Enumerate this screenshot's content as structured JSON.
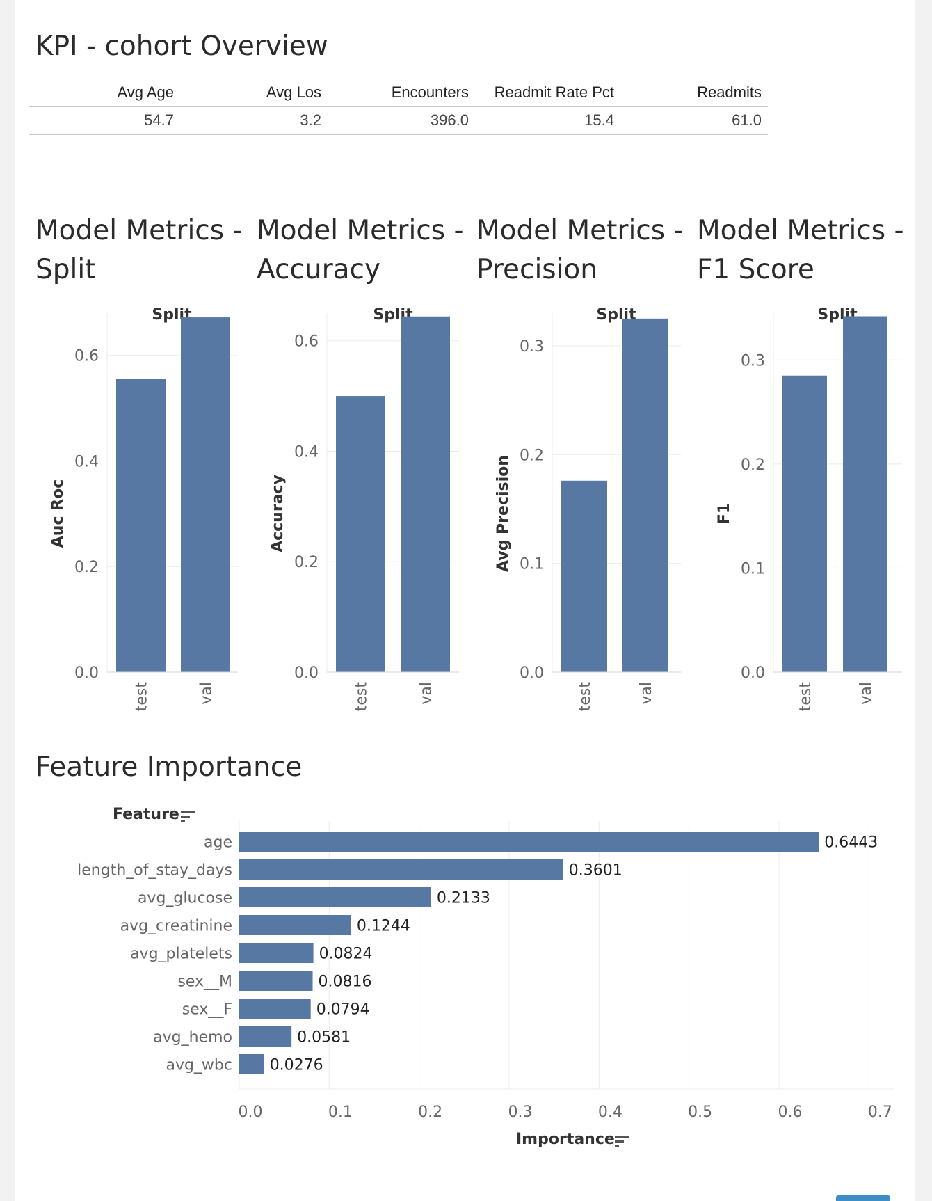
{
  "kpi": {
    "title": "KPI - cohort Overview",
    "columns": [
      "Avg Age",
      "Avg Los",
      "Encounters",
      "Readmit Rate Pct",
      "Readmits"
    ],
    "values": [
      "54.7",
      "3.2",
      "396.0",
      "15.4",
      "61.0"
    ]
  },
  "model_metrics": [
    {
      "title": "Model Metrics - Split",
      "header": "Split",
      "ylabel": "Auc Roc"
    },
    {
      "title": "Model Metrics - Accuracy",
      "header": "Split",
      "ylabel": "Accuracy"
    },
    {
      "title": "Model Metrics - Precision",
      "header": "Split",
      "ylabel": "Avg Precision"
    },
    {
      "title": "Model Metrics - F1 Score",
      "header": "Split",
      "ylabel": "F1"
    }
  ],
  "feature_importance": {
    "title": "Feature Importance",
    "feature_header": "Feature",
    "importance_header": "Importance"
  },
  "colors": {
    "bar": "#5878a4",
    "grid": "#ececec",
    "axis": "#d6d6d6",
    "tick": "#666666"
  },
  "chart_data": [
    {
      "type": "bar",
      "title": "Model Metrics - Split",
      "xlabel": "Split",
      "ylabel": "Auc Roc",
      "categories": [
        "test",
        "val"
      ],
      "values": [
        0.556,
        0.672
      ],
      "ylim": [
        0,
        0.68
      ],
      "yticks": [
        0.0,
        0.2,
        0.4,
        0.6
      ]
    },
    {
      "type": "bar",
      "title": "Model Metrics - Accuracy",
      "xlabel": "Split",
      "ylabel": "Accuracy",
      "categories": [
        "test",
        "val"
      ],
      "values": [
        0.5,
        0.644
      ],
      "ylim": [
        0,
        0.65
      ],
      "yticks": [
        0.0,
        0.2,
        0.4,
        0.6
      ]
    },
    {
      "type": "bar",
      "title": "Model Metrics - Precision",
      "xlabel": "Split",
      "ylabel": "Avg Precision",
      "categories": [
        "test",
        "val"
      ],
      "values": [
        0.176,
        0.325
      ],
      "ylim": [
        0,
        0.33
      ],
      "yticks": [
        0.0,
        0.1,
        0.2,
        0.3
      ]
    },
    {
      "type": "bar",
      "title": "Model Metrics - F1 Score",
      "xlabel": "Split",
      "ylabel": "F1",
      "categories": [
        "test",
        "val"
      ],
      "values": [
        0.285,
        0.342
      ],
      "ylim": [
        0,
        0.345
      ],
      "yticks": [
        0.0,
        0.1,
        0.2,
        0.3
      ]
    },
    {
      "type": "bar",
      "orientation": "horizontal",
      "title": "Feature Importance",
      "xlabel": "Importance",
      "ylabel": "Feature",
      "categories": [
        "age",
        "length_of_stay_days",
        "avg_glucose",
        "avg_creatinine",
        "avg_platelets",
        "sex__M",
        "sex__F",
        "avg_hemo",
        "avg_wbc"
      ],
      "values": [
        0.6443,
        0.3601,
        0.2133,
        0.1244,
        0.0824,
        0.0816,
        0.0794,
        0.0581,
        0.0276
      ],
      "labels": [
        "0.6443",
        "0.3601",
        "0.2133",
        "0.1244",
        "0.0824",
        "0.0816",
        "0.0794",
        "0.0581",
        "0.0276"
      ],
      "xlim": [
        0,
        0.75
      ],
      "xticks": [
        "0.0",
        "0.1",
        "0.2",
        "0.3",
        "0.4",
        "0.5",
        "0.6",
        "0.7"
      ]
    }
  ]
}
